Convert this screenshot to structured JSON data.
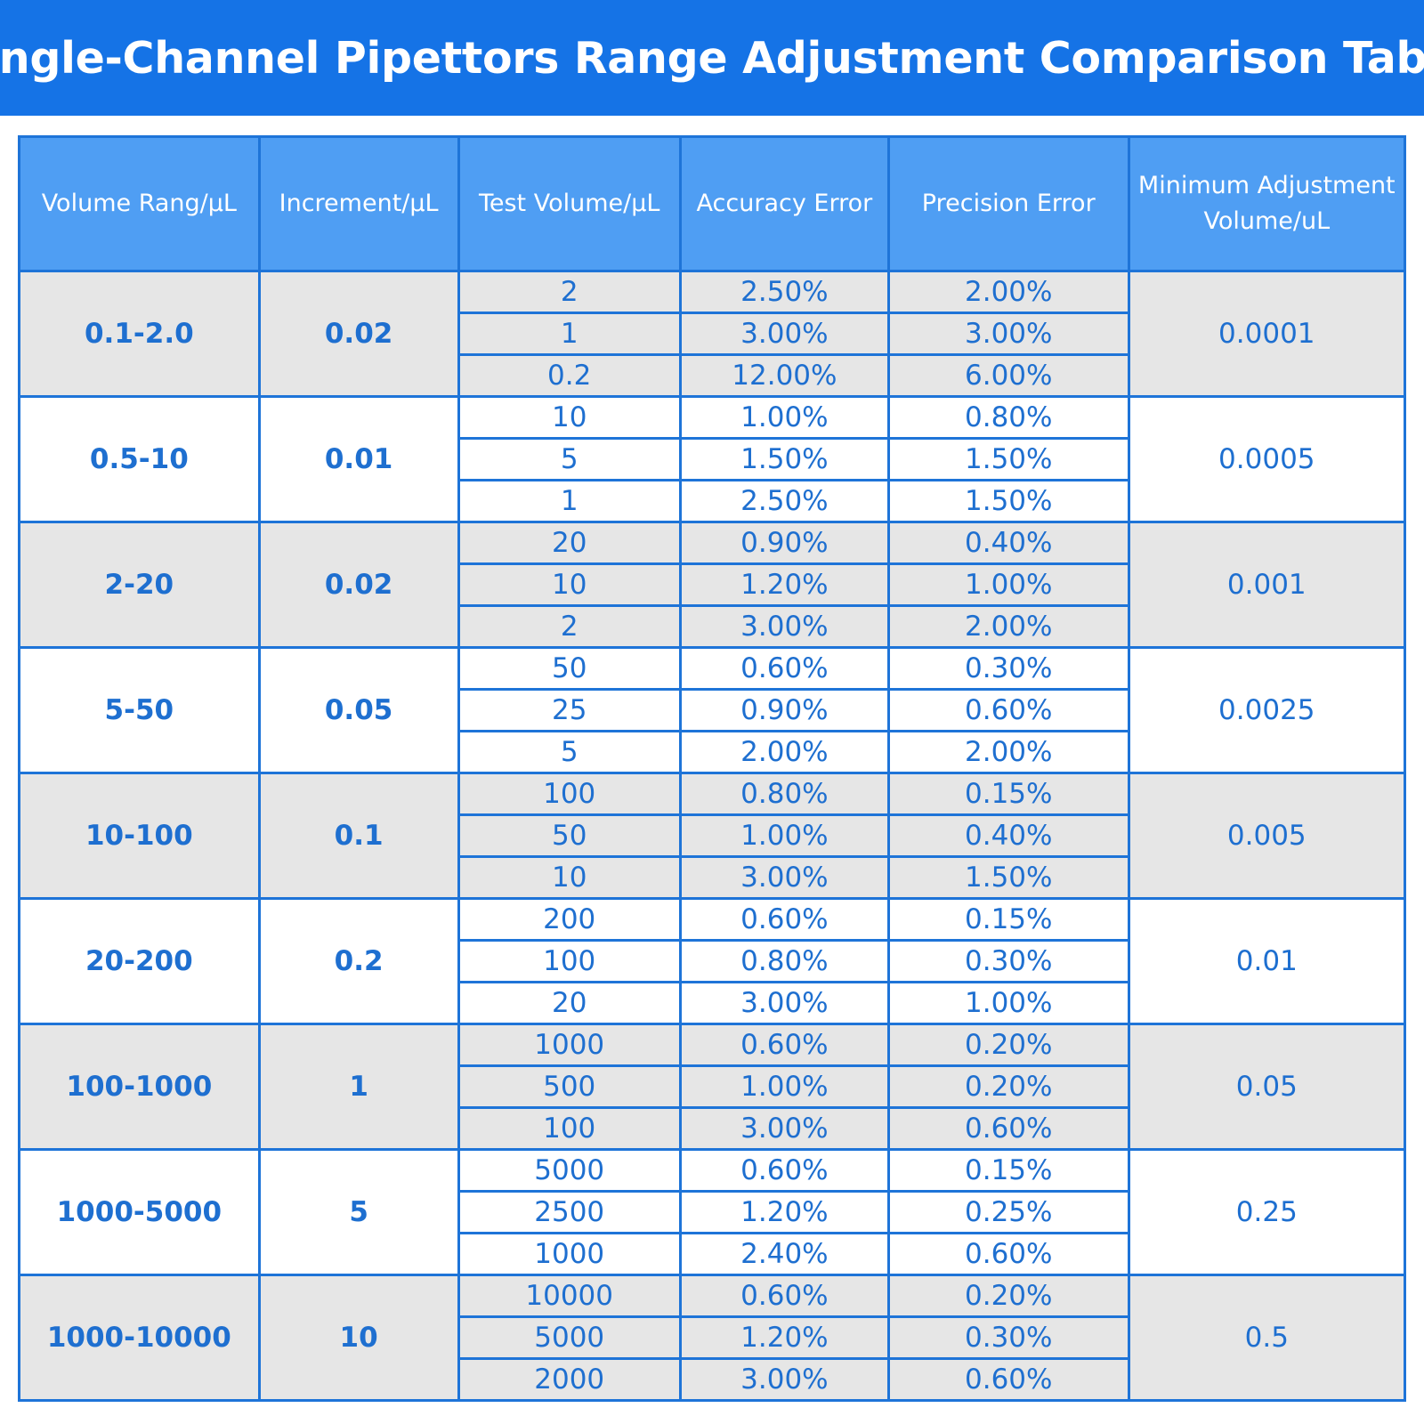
{
  "title": "Single-Channel Pipettors Range Adjustment Comparison Table",
  "colors": {
    "banner": "#1573e6",
    "header": "#4f9ef3",
    "border": "#1e74d8",
    "text": "#1e6fd0",
    "shade": "#e6e6e6"
  },
  "headers": {
    "volume_range": "Volume Rang/μL",
    "increment": "Increment/μL",
    "test_volume": "Test Volume/μL",
    "accuracy": "Accuracy Error",
    "precision": "Precision Error",
    "min_adjust_line1": "Minimum Adjustment",
    "min_adjust_line2": "Volume/uL"
  },
  "groups": [
    {
      "range": "0.1-2.0",
      "increment": "0.02",
      "min_adjust": "0.0001",
      "rows": [
        [
          "2",
          "2.50%",
          "2.00%"
        ],
        [
          "1",
          "3.00%",
          "3.00%"
        ],
        [
          "0.2",
          "12.00%",
          "6.00%"
        ]
      ]
    },
    {
      "range": "0.5-10",
      "increment": "0.01",
      "min_adjust": "0.0005",
      "rows": [
        [
          "10",
          "1.00%",
          "0.80%"
        ],
        [
          "5",
          "1.50%",
          "1.50%"
        ],
        [
          "1",
          "2.50%",
          "1.50%"
        ]
      ]
    },
    {
      "range": "2-20",
      "increment": "0.02",
      "min_adjust": "0.001",
      "rows": [
        [
          "20",
          "0.90%",
          "0.40%"
        ],
        [
          "10",
          "1.20%",
          "1.00%"
        ],
        [
          "2",
          "3.00%",
          "2.00%"
        ]
      ]
    },
    {
      "range": "5-50",
      "increment": "0.05",
      "min_adjust": "0.0025",
      "rows": [
        [
          "50",
          "0.60%",
          "0.30%"
        ],
        [
          "25",
          "0.90%",
          "0.60%"
        ],
        [
          "5",
          "2.00%",
          "2.00%"
        ]
      ]
    },
    {
      "range": "10-100",
      "increment": "0.1",
      "min_adjust": "0.005",
      "rows": [
        [
          "100",
          "0.80%",
          "0.15%"
        ],
        [
          "50",
          "1.00%",
          "0.40%"
        ],
        [
          "10",
          "3.00%",
          "1.50%"
        ]
      ]
    },
    {
      "range": "20-200",
      "increment": "0.2",
      "min_adjust": "0.01",
      "rows": [
        [
          "200",
          "0.60%",
          "0.15%"
        ],
        [
          "100",
          "0.80%",
          "0.30%"
        ],
        [
          "20",
          "3.00%",
          "1.00%"
        ]
      ]
    },
    {
      "range": "100-1000",
      "increment": "1",
      "min_adjust": "0.05",
      "rows": [
        [
          "1000",
          "0.60%",
          "0.20%"
        ],
        [
          "500",
          "1.00%",
          "0.20%"
        ],
        [
          "100",
          "3.00%",
          "0.60%"
        ]
      ]
    },
    {
      "range": "1000-5000",
      "increment": "5",
      "min_adjust": "0.25",
      "rows": [
        [
          "5000",
          "0.60%",
          "0.15%"
        ],
        [
          "2500",
          "1.20%",
          "0.25%"
        ],
        [
          "1000",
          "2.40%",
          "0.60%"
        ]
      ]
    },
    {
      "range": "1000-10000",
      "increment": "10",
      "min_adjust": "0.5",
      "rows": [
        [
          "10000",
          "0.60%",
          "0.20%"
        ],
        [
          "5000",
          "1.20%",
          "0.30%"
        ],
        [
          "2000",
          "3.00%",
          "0.60%"
        ]
      ]
    }
  ]
}
